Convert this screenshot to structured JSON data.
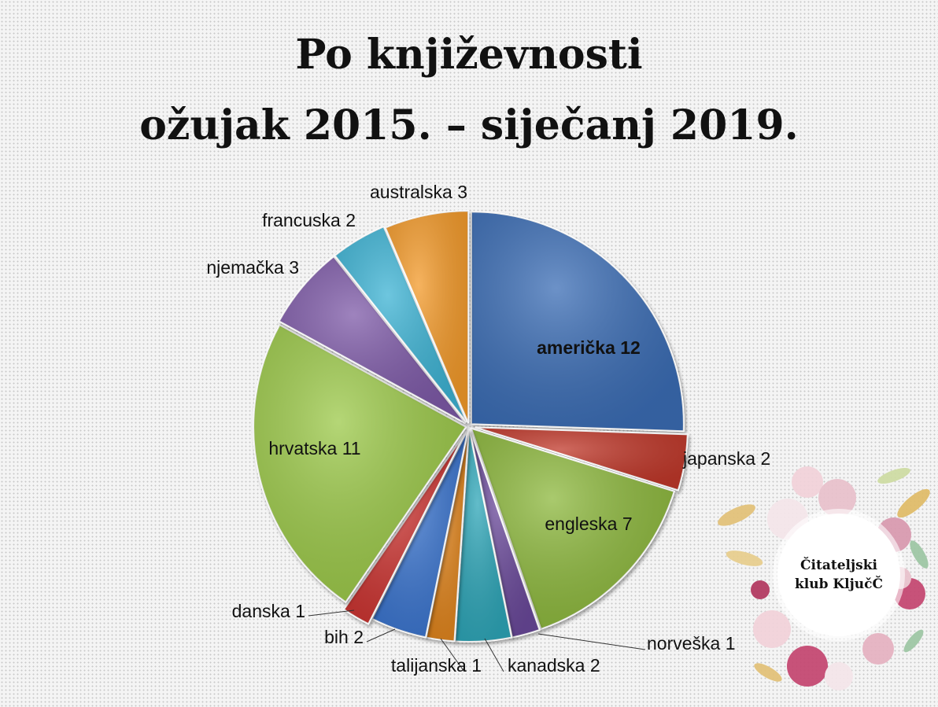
{
  "title": {
    "line1": "Po književnosti",
    "line2": "ožujak 2015. – siječanj 2019."
  },
  "badge": {
    "line1": "Čitateljski",
    "line2": "klub KljučČ"
  },
  "colors": {
    "američka": "#3a6db5",
    "japanska": "#c0392b",
    "engleska": "#8db83e",
    "norveška": "#6a4a9a",
    "kanadska": "#2ea6b8",
    "talijanska": "#e0841f",
    "bih": "#3a74cf",
    "danska": "#cc3431",
    "hrvatska": "#9cc94a",
    "njemačka": "#7e5aa8",
    "francuska": "#3cb3d4",
    "australska": "#f39a2c"
  },
  "chart_data": {
    "type": "pie",
    "start_angle": "12 o'clock",
    "direction": "clockwise",
    "categories": [
      "američka",
      "japanska",
      "engleska",
      "norveška",
      "kanadska",
      "talijanska",
      "bih",
      "danska",
      "hrvatska",
      "njemačka",
      "francuska",
      "australska"
    ],
    "values": [
      12,
      2,
      7,
      1,
      2,
      1,
      2,
      1,
      11,
      3,
      2,
      3
    ],
    "labels": [
      "američka 12",
      "japanska 2",
      "engleska 7",
      "norveška 1",
      "kanadska 2",
      "talijanska 1",
      "bih 2",
      "danska 1",
      "hrvatska 11",
      "njemačka 3",
      "francuska 2",
      "australska 3"
    ],
    "exploded": true
  }
}
